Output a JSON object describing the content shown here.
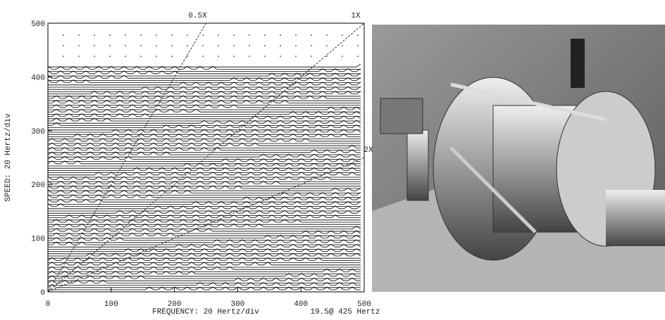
{
  "chart_data": {
    "type": "line",
    "x_label": "FREQUENCY: 20 Hertz/div",
    "y_label": "SPEED: 20 Hertz/div",
    "cursor_readout": "19.5@ 425 Hertz",
    "xlim": [
      0,
      500
    ],
    "xticks": [
      0,
      100,
      200,
      300,
      400,
      500
    ],
    "ylim": [
      0,
      500
    ],
    "yticks": [
      0,
      100,
      200,
      300,
      400,
      500
    ],
    "series": [
      {
        "name": "0.5X",
        "color": "#333333",
        "x": [
          0,
          250
        ],
        "values": [
          0,
          500
        ]
      },
      {
        "name": "1X",
        "color": "#333333",
        "x": [
          0,
          500
        ],
        "values": [
          0,
          500
        ]
      },
      {
        "name": "2X",
        "color": "#333333",
        "x": [
          0,
          500
        ],
        "values": [
          0,
          250
        ]
      }
    ]
  }
}
